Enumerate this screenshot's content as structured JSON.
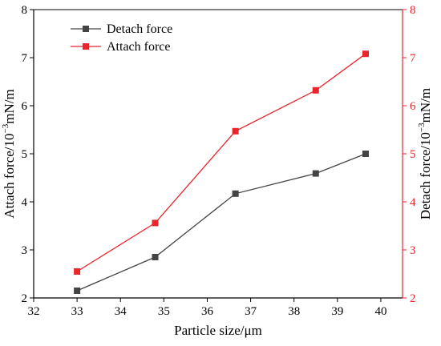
{
  "chart_data": {
    "type": "line",
    "xlabel": "Particle size/μm",
    "ylabel_left": {
      "base": "Attach force/10",
      "sup": "−3",
      "unit": "mN/m"
    },
    "ylabel_right": {
      "base": "Detach force/10",
      "sup": "−3",
      "unit": "mN/m"
    },
    "xlim": [
      32,
      40.5
    ],
    "ylim": [
      2,
      8
    ],
    "x_ticks": [
      "32",
      "33",
      "34",
      "35",
      "36",
      "37",
      "38",
      "39",
      "40"
    ],
    "y_ticks": [
      "2",
      "3",
      "4",
      "5",
      "6",
      "7",
      "8"
    ],
    "grid": false,
    "legend_position": "top-left",
    "series": [
      {
        "name": "Detach force",
        "color": "#444444",
        "axis": "right",
        "x": [
          33.0,
          34.8,
          36.65,
          38.5,
          39.65
        ],
        "y": [
          2.15,
          2.85,
          4.17,
          4.59,
          5.0
        ]
      },
      {
        "name": "Attach force",
        "color": "#e8262c",
        "axis": "left",
        "x": [
          33.0,
          34.8,
          36.65,
          38.5,
          39.65
        ],
        "y": [
          2.55,
          3.56,
          5.47,
          6.32,
          7.08
        ]
      }
    ]
  },
  "colors": {
    "left_axis": "#000000",
    "right_axis": "#e8262c"
  }
}
